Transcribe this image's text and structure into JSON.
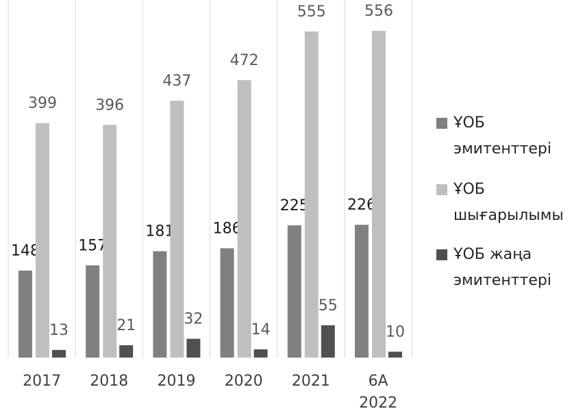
{
  "chart_data": {
    "type": "bar",
    "categories": [
      "2017",
      "2018",
      "2019",
      "2020",
      "2021",
      "6А 2022"
    ],
    "series": [
      {
        "name": "ҰОБ эмитенттері",
        "color": "#808080",
        "values": [
          148,
          157,
          181,
          186,
          225,
          226
        ]
      },
      {
        "name": "ҰОБ шығарылымы",
        "color": "#bfbfbf",
        "values": [
          399,
          396,
          437,
          472,
          555,
          556
        ]
      },
      {
        "name": "ҰОБ жаңа эмитенттері",
        "color": "#505050",
        "values": [
          13,
          21,
          32,
          14,
          55,
          10
        ]
      }
    ],
    "ylim": [
      0,
      560
    ],
    "grid": true,
    "legend": "right"
  }
}
